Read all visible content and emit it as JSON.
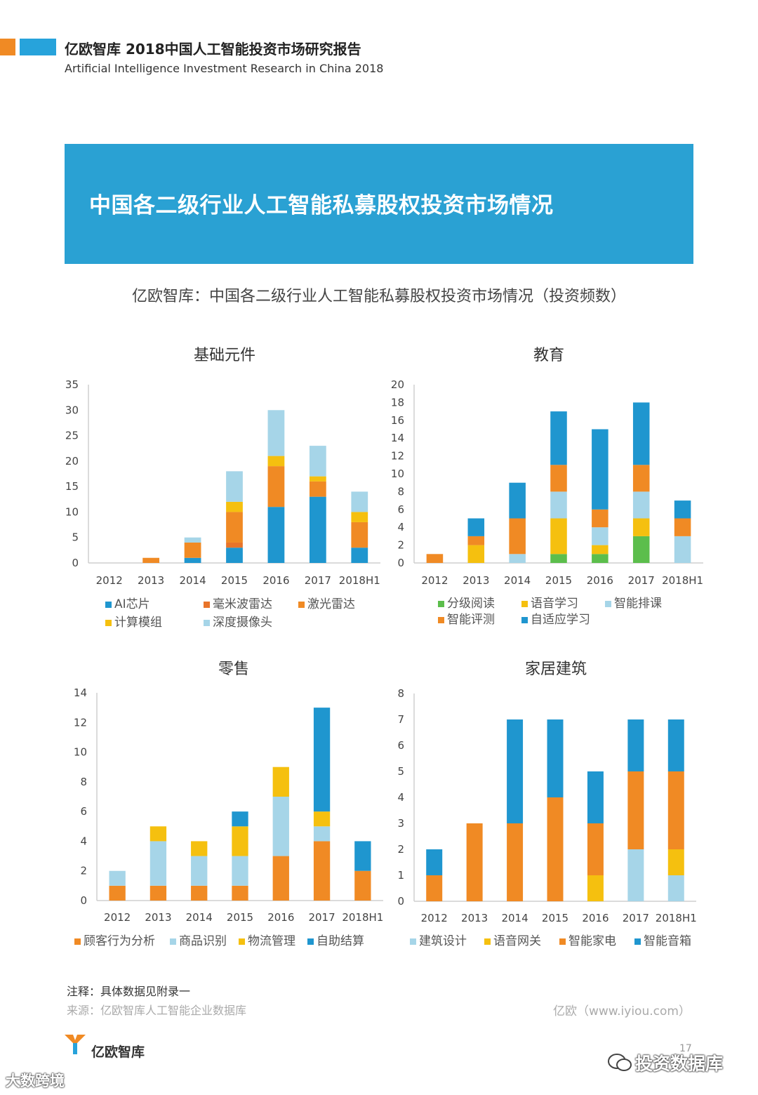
{
  "header": {
    "title": "亿欧智库 2018中国人工智能投资市场研究报告",
    "subtitle": "Artificial Intelligence Investment Research in China 2018"
  },
  "banner": {
    "title": "中国各二级行业人工智能私募股权投资市场情况"
  },
  "main_title": "亿欧智库：中国各二级行业人工智能私募股权投资市场情况（投资频数）",
  "colors": {
    "blue": "#1f96cf",
    "orange": "#f08a24",
    "yellow": "#f5c00f",
    "lightblue": "#a6d5e8",
    "green": "#5cbe4c",
    "banner": "#2aa1d3"
  },
  "chart_data": [
    {
      "type": "bar",
      "stacked": true,
      "title": "基础元件",
      "categories": [
        "2012",
        "2013",
        "2014",
        "2015",
        "2016",
        "2017",
        "2018H1"
      ],
      "ylim": [
        0,
        35
      ],
      "yticks": [
        0,
        5,
        10,
        15,
        20,
        25,
        30,
        35
      ],
      "legend_position": "bottom",
      "series": [
        {
          "name": "AI芯片",
          "color": "#1f96cf",
          "values": [
            0,
            0,
            1,
            3,
            11,
            13,
            3
          ]
        },
        {
          "name": "毫米波雷达",
          "color": "#e8742a",
          "values": [
            0,
            0,
            0,
            1,
            0,
            0,
            0
          ]
        },
        {
          "name": "激光雷达",
          "color": "#f08a24",
          "values": [
            0,
            1,
            3,
            6,
            8,
            3,
            5
          ]
        },
        {
          "name": "计算模组",
          "color": "#f5c00f",
          "values": [
            0,
            0,
            0,
            2,
            2,
            1,
            2
          ]
        },
        {
          "name": "深度摄像头",
          "color": "#a6d5e8",
          "values": [
            0,
            0,
            1,
            6,
            9,
            6,
            4
          ]
        }
      ]
    },
    {
      "type": "bar",
      "stacked": true,
      "title": "教育",
      "categories": [
        "2012",
        "2013",
        "2014",
        "2015",
        "2016",
        "2017",
        "2018H1"
      ],
      "ylim": [
        0,
        20
      ],
      "yticks": [
        0,
        2,
        4,
        6,
        8,
        10,
        12,
        14,
        16,
        18,
        20
      ],
      "legend_position": "bottom",
      "series": [
        {
          "name": "分级阅读",
          "color": "#5cbe4c",
          "values": [
            0,
            0,
            0,
            1,
            1,
            3,
            0
          ]
        },
        {
          "name": "语音学习",
          "color": "#f5c00f",
          "values": [
            0,
            2,
            0,
            4,
            1,
            2,
            0
          ]
        },
        {
          "name": "智能排课",
          "color": "#a6d5e8",
          "values": [
            0,
            0,
            1,
            3,
            2,
            3,
            3
          ]
        },
        {
          "name": "智能评测",
          "color": "#f08a24",
          "values": [
            1,
            1,
            4,
            3,
            2,
            3,
            2
          ]
        },
        {
          "name": "自适应学习",
          "color": "#1f96cf",
          "values": [
            0,
            2,
            4,
            6,
            9,
            7,
            2
          ]
        }
      ]
    },
    {
      "type": "bar",
      "stacked": true,
      "title": "零售",
      "categories": [
        "2012",
        "2013",
        "2014",
        "2015",
        "2016",
        "2017",
        "2018H1"
      ],
      "ylim": [
        0,
        14
      ],
      "yticks": [
        0,
        2,
        4,
        6,
        8,
        10,
        12,
        14
      ],
      "legend_position": "bottom",
      "series": [
        {
          "name": "顾客行为分析",
          "color": "#f08a24",
          "values": [
            1,
            1,
            1,
            1,
            3,
            4,
            2
          ]
        },
        {
          "name": "商品识别",
          "color": "#a6d5e8",
          "values": [
            1,
            3,
            2,
            2,
            4,
            1,
            0
          ]
        },
        {
          "name": "物流管理",
          "color": "#f5c00f",
          "values": [
            0,
            1,
            1,
            2,
            2,
            1,
            0
          ]
        },
        {
          "name": "自助结算",
          "color": "#1f96cf",
          "values": [
            0,
            0,
            0,
            1,
            0,
            7,
            2
          ]
        }
      ]
    },
    {
      "type": "bar",
      "stacked": true,
      "title": "家居建筑",
      "categories": [
        "2012",
        "2013",
        "2014",
        "2015",
        "2016",
        "2017",
        "2018H1"
      ],
      "ylim": [
        0,
        8
      ],
      "yticks": [
        0,
        1,
        2,
        3,
        4,
        5,
        6,
        7,
        8
      ],
      "legend_position": "bottom",
      "series": [
        {
          "name": "建筑设计",
          "color": "#a6d5e8",
          "values": [
            0,
            0,
            0,
            0,
            0,
            2,
            1
          ]
        },
        {
          "name": "语音网关",
          "color": "#f5c00f",
          "values": [
            0,
            0,
            0,
            0,
            1,
            0,
            1
          ]
        },
        {
          "name": "智能家电",
          "color": "#f08a24",
          "values": [
            1,
            3,
            3,
            4,
            2,
            3,
            3
          ]
        },
        {
          "name": "智能音箱",
          "color": "#1f96cf",
          "values": [
            1,
            0,
            4,
            3,
            2,
            2,
            2
          ]
        }
      ]
    }
  ],
  "footer": {
    "note": "注释：具体数据见附录一",
    "source": "来源：亿欧智库人工智能企业数据库",
    "site": "亿欧（www.iyiou.com）",
    "logo_text": "亿欧智库",
    "page_number": "17",
    "watermark_left": "大数跨境",
    "watermark_right": "投资数据库"
  }
}
